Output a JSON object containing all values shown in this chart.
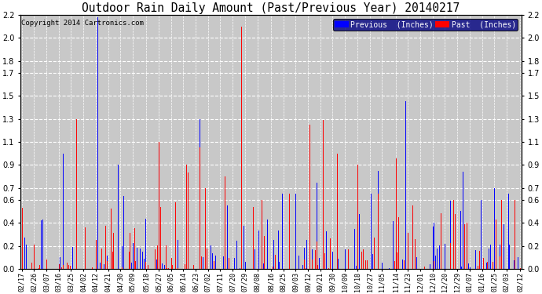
{
  "title": "Outdoor Rain Daily Amount (Past/Previous Year) 20140217",
  "copyright": "Copyright 2014 Cartronics.com",
  "legend_previous": "Previous  (Inches)",
  "legend_past": "Past  (Inches)",
  "color_previous": "blue",
  "color_past": "red",
  "color_black": "#555555",
  "ylim": [
    0.0,
    2.2
  ],
  "yticks": [
    0.0,
    0.2,
    0.4,
    0.6,
    0.7,
    0.9,
    1.1,
    1.3,
    1.5,
    1.7,
    1.8,
    2.0,
    2.2
  ],
  "plot_bg": "#c8c8c8",
  "fig_bg": "#ffffff",
  "grid_color": "#ffffff",
  "x_labels": [
    "02/17",
    "02/26",
    "03/07",
    "03/16",
    "03/25",
    "04/02",
    "04/12",
    "04/21",
    "04/30",
    "05/09",
    "05/18",
    "05/27",
    "06/05",
    "06/14",
    "06/23",
    "07/02",
    "07/11",
    "07/20",
    "07/29",
    "08/08",
    "08/16",
    "08/25",
    "09/03",
    "09/12",
    "09/21",
    "09/30",
    "10/09",
    "10/18",
    "10/27",
    "11/05",
    "11/14",
    "11/23",
    "12/01",
    "12/10",
    "12/20",
    "12/29",
    "01/07",
    "01/16",
    "01/25",
    "02/03",
    "02/12"
  ],
  "num_points": 365,
  "figsize": [
    6.9,
    3.75
  ],
  "dpi": 100
}
